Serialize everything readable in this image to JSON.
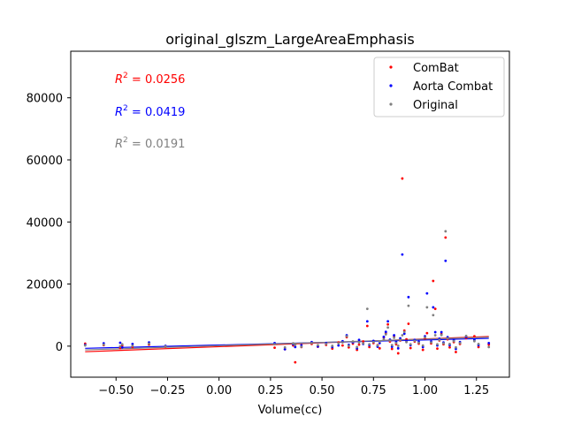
{
  "chart_data": {
    "type": "scatter",
    "title": "original_glszm_LargeAreaEmphasis",
    "xlabel": "Volume(cc)",
    "ylabel": "",
    "xlim": [
      -0.72,
      1.41
    ],
    "ylim": [
      -10000,
      95000
    ],
    "xticks": [
      -0.5,
      -0.25,
      0.0,
      0.25,
      0.5,
      0.75,
      1.0,
      1.25
    ],
    "xtick_labels": [
      "−0.50",
      "−0.25",
      "0.00",
      "0.25",
      "0.50",
      "0.75",
      "1.00",
      "1.25"
    ],
    "yticks": [
      0,
      20000,
      40000,
      60000,
      80000
    ],
    "ytick_labels": [
      "0",
      "20000",
      "40000",
      "60000",
      "80000"
    ],
    "grid": false,
    "legend_position": "top-right",
    "annotations": [
      {
        "prefix": "R",
        "sup": "2",
        "text": " = 0.0256",
        "color": "#ff0000"
      },
      {
        "prefix": "R",
        "sup": "2",
        "text": " = 0.0419",
        "color": "#0000ff"
      },
      {
        "prefix": "R",
        "sup": "2",
        "text": " = 0.0191",
        "color": "#808080"
      }
    ],
    "series": [
      {
        "name": "ComBat",
        "color": "#ff0000",
        "fit": {
          "x": [
            -0.65,
            1.31
          ],
          "y": [
            -1800,
            3100
          ]
        },
        "points": [
          [
            -0.65,
            800
          ],
          [
            -0.56,
            300
          ],
          [
            -0.48,
            -600
          ],
          [
            -0.47,
            200
          ],
          [
            -0.42,
            -300
          ],
          [
            -0.34,
            500
          ],
          [
            -0.26,
            -200
          ],
          [
            0.27,
            -500
          ],
          [
            0.32,
            -1000
          ],
          [
            0.36,
            200
          ],
          [
            0.37,
            -5200
          ],
          [
            0.4,
            -300
          ],
          [
            0.45,
            700
          ],
          [
            0.48,
            -200
          ],
          [
            0.52,
            400
          ],
          [
            0.55,
            -800
          ],
          [
            0.58,
            1200
          ],
          [
            0.6,
            200
          ],
          [
            0.62,
            2900
          ],
          [
            0.63,
            -400
          ],
          [
            0.65,
            800
          ],
          [
            0.67,
            -1200
          ],
          [
            0.68,
            500
          ],
          [
            0.7,
            1500
          ],
          [
            0.72,
            6500
          ],
          [
            0.73,
            -300
          ],
          [
            0.75,
            1000
          ],
          [
            0.77,
            300
          ],
          [
            0.78,
            -700
          ],
          [
            0.8,
            2800
          ],
          [
            0.81,
            4200
          ],
          [
            0.82,
            7000
          ],
          [
            0.83,
            1500
          ],
          [
            0.84,
            -900
          ],
          [
            0.85,
            3200
          ],
          [
            0.86,
            600
          ],
          [
            0.87,
            -2300
          ],
          [
            0.88,
            1800
          ],
          [
            0.89,
            54000
          ],
          [
            0.9,
            5000
          ],
          [
            0.91,
            2200
          ],
          [
            0.92,
            7200
          ],
          [
            0.93,
            -600
          ],
          [
            0.95,
            1500
          ],
          [
            0.97,
            800
          ],
          [
            0.99,
            -1200
          ],
          [
            1.0,
            2500
          ],
          [
            1.01,
            4200
          ],
          [
            1.03,
            900
          ],
          [
            1.04,
            21000
          ],
          [
            1.05,
            12000
          ],
          [
            1.06,
            -800
          ],
          [
            1.07,
            1800
          ],
          [
            1.08,
            3900
          ],
          [
            1.09,
            600
          ],
          [
            1.1,
            35000
          ],
          [
            1.11,
            2200
          ],
          [
            1.12,
            -400
          ],
          [
            1.14,
            1300
          ],
          [
            1.15,
            -1900
          ],
          [
            1.17,
            700
          ],
          [
            1.2,
            2600
          ],
          [
            1.24,
            3200
          ],
          [
            1.26,
            -300
          ],
          [
            1.31,
            500
          ]
        ]
      },
      {
        "name": "Aorta Combat",
        "color": "#0000ff",
        "fit": {
          "x": [
            -0.65,
            1.31
          ],
          "y": [
            -700,
            2500
          ]
        },
        "points": [
          [
            -0.65,
            400
          ],
          [
            -0.56,
            900
          ],
          [
            -0.48,
            1100
          ],
          [
            -0.47,
            -400
          ],
          [
            -0.42,
            700
          ],
          [
            -0.34,
            1200
          ],
          [
            -0.26,
            100
          ],
          [
            0.27,
            1000
          ],
          [
            0.32,
            -1000
          ],
          [
            0.36,
            600
          ],
          [
            0.37,
            -300
          ],
          [
            0.4,
            300
          ],
          [
            0.45,
            1300
          ],
          [
            0.48,
            -100
          ],
          [
            0.52,
            1000
          ],
          [
            0.55,
            -300
          ],
          [
            0.58,
            200
          ],
          [
            0.6,
            1600
          ],
          [
            0.62,
            3500
          ],
          [
            0.63,
            400
          ],
          [
            0.65,
            1200
          ],
          [
            0.67,
            -700
          ],
          [
            0.68,
            2000
          ],
          [
            0.7,
            700
          ],
          [
            0.72,
            8000
          ],
          [
            0.73,
            300
          ],
          [
            0.75,
            1700
          ],
          [
            0.77,
            -200
          ],
          [
            0.78,
            1000
          ],
          [
            0.8,
            3000
          ],
          [
            0.81,
            4600
          ],
          [
            0.82,
            8000
          ],
          [
            0.83,
            2100
          ],
          [
            0.84,
            -200
          ],
          [
            0.85,
            3500
          ],
          [
            0.86,
            1400
          ],
          [
            0.87,
            -700
          ],
          [
            0.88,
            2500
          ],
          [
            0.89,
            29500
          ],
          [
            0.9,
            4000
          ],
          [
            0.91,
            1700
          ],
          [
            0.92,
            15800
          ],
          [
            0.93,
            300
          ],
          [
            0.95,
            2000
          ],
          [
            0.97,
            1400
          ],
          [
            0.99,
            -300
          ],
          [
            1.0,
            3200
          ],
          [
            1.01,
            17000
          ],
          [
            1.03,
            1500
          ],
          [
            1.04,
            12500
          ],
          [
            1.05,
            4500
          ],
          [
            1.06,
            200
          ],
          [
            1.07,
            2400
          ],
          [
            1.08,
            4500
          ],
          [
            1.09,
            1200
          ],
          [
            1.1,
            27500
          ],
          [
            1.11,
            2900
          ],
          [
            1.12,
            300
          ],
          [
            1.14,
            1900
          ],
          [
            1.15,
            -900
          ],
          [
            1.17,
            1300
          ],
          [
            1.2,
            3000
          ],
          [
            1.24,
            2000
          ],
          [
            1.26,
            300
          ],
          [
            1.31,
            1000
          ]
        ]
      },
      {
        "name": "Original",
        "color": "#808080",
        "fit": {
          "x": [
            -0.65,
            1.31
          ],
          "y": [
            -1200,
            2900
          ]
        },
        "points": [
          [
            -0.65,
            200
          ],
          [
            -0.56,
            500
          ],
          [
            -0.48,
            -100
          ],
          [
            -0.47,
            600
          ],
          [
            -0.42,
            100
          ],
          [
            -0.34,
            800
          ],
          [
            -0.26,
            -100
          ],
          [
            0.27,
            600
          ],
          [
            0.32,
            -400
          ],
          [
            0.36,
            900
          ],
          [
            0.37,
            400
          ],
          [
            0.4,
            -200
          ],
          [
            0.45,
            1000
          ],
          [
            0.48,
            300
          ],
          [
            0.52,
            700
          ],
          [
            0.55,
            100
          ],
          [
            0.58,
            900
          ],
          [
            0.6,
            1200
          ],
          [
            0.62,
            3200
          ],
          [
            0.63,
            100
          ],
          [
            0.65,
            1500
          ],
          [
            0.67,
            -300
          ],
          [
            0.68,
            1200
          ],
          [
            0.7,
            900
          ],
          [
            0.72,
            12000
          ],
          [
            0.73,
            600
          ],
          [
            0.75,
            1300
          ],
          [
            0.77,
            200
          ],
          [
            0.78,
            1500
          ],
          [
            0.8,
            2200
          ],
          [
            0.81,
            3800
          ],
          [
            0.82,
            6000
          ],
          [
            0.83,
            1800
          ],
          [
            0.84,
            300
          ],
          [
            0.85,
            2700
          ],
          [
            0.86,
            1000
          ],
          [
            0.87,
            100
          ],
          [
            0.88,
            2000
          ],
          [
            0.89,
            3500
          ],
          [
            0.9,
            4600
          ],
          [
            0.91,
            1300
          ],
          [
            0.92,
            13000
          ],
          [
            0.93,
            600
          ],
          [
            0.95,
            1700
          ],
          [
            0.97,
            1100
          ],
          [
            0.99,
            200
          ],
          [
            1.0,
            2800
          ],
          [
            1.01,
            12500
          ],
          [
            1.03,
            1200
          ],
          [
            1.04,
            10000
          ],
          [
            1.05,
            3500
          ],
          [
            1.06,
            600
          ],
          [
            1.07,
            2000
          ],
          [
            1.08,
            3600
          ],
          [
            1.09,
            900
          ],
          [
            1.1,
            37000
          ],
          [
            1.11,
            2500
          ],
          [
            1.12,
            700
          ],
          [
            1.14,
            1600
          ],
          [
            1.15,
            -400
          ],
          [
            1.17,
            1000
          ],
          [
            1.2,
            3300
          ],
          [
            1.24,
            1600
          ],
          [
            1.26,
            700
          ],
          [
            1.31,
            -300
          ]
        ]
      }
    ]
  }
}
